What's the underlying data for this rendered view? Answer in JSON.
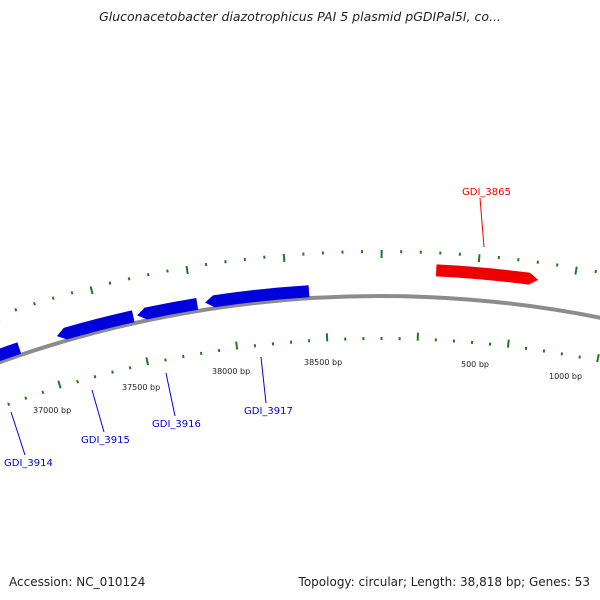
{
  "title": "Gluconacetobacter diazotrophicus PAI 5 plasmid pGDIPal5I, co...",
  "footer": {
    "accession": "Accession: NC_010124",
    "summary": "Topology: circular; Length: 38,818 bp; Genes: 53"
  },
  "colors": {
    "backbone": "#8c8c8c",
    "tick": "#1f7a1f",
    "forward_gene": "#ee0000",
    "reverse_gene": "#0000dd"
  },
  "tick_labels": [
    "37000 bp",
    "37500 bp",
    "38000 bp",
    "38500 bp",
    "500 bp",
    "1000 bp"
  ],
  "genes": [
    {
      "id": "GDI_3914",
      "strand": "reverse"
    },
    {
      "id": "GDI_3915",
      "strand": "reverse"
    },
    {
      "id": "GDI_3916",
      "strand": "reverse"
    },
    {
      "id": "GDI_3917",
      "strand": "reverse"
    },
    {
      "id": "GDI_3865",
      "strand": "forward"
    }
  ]
}
